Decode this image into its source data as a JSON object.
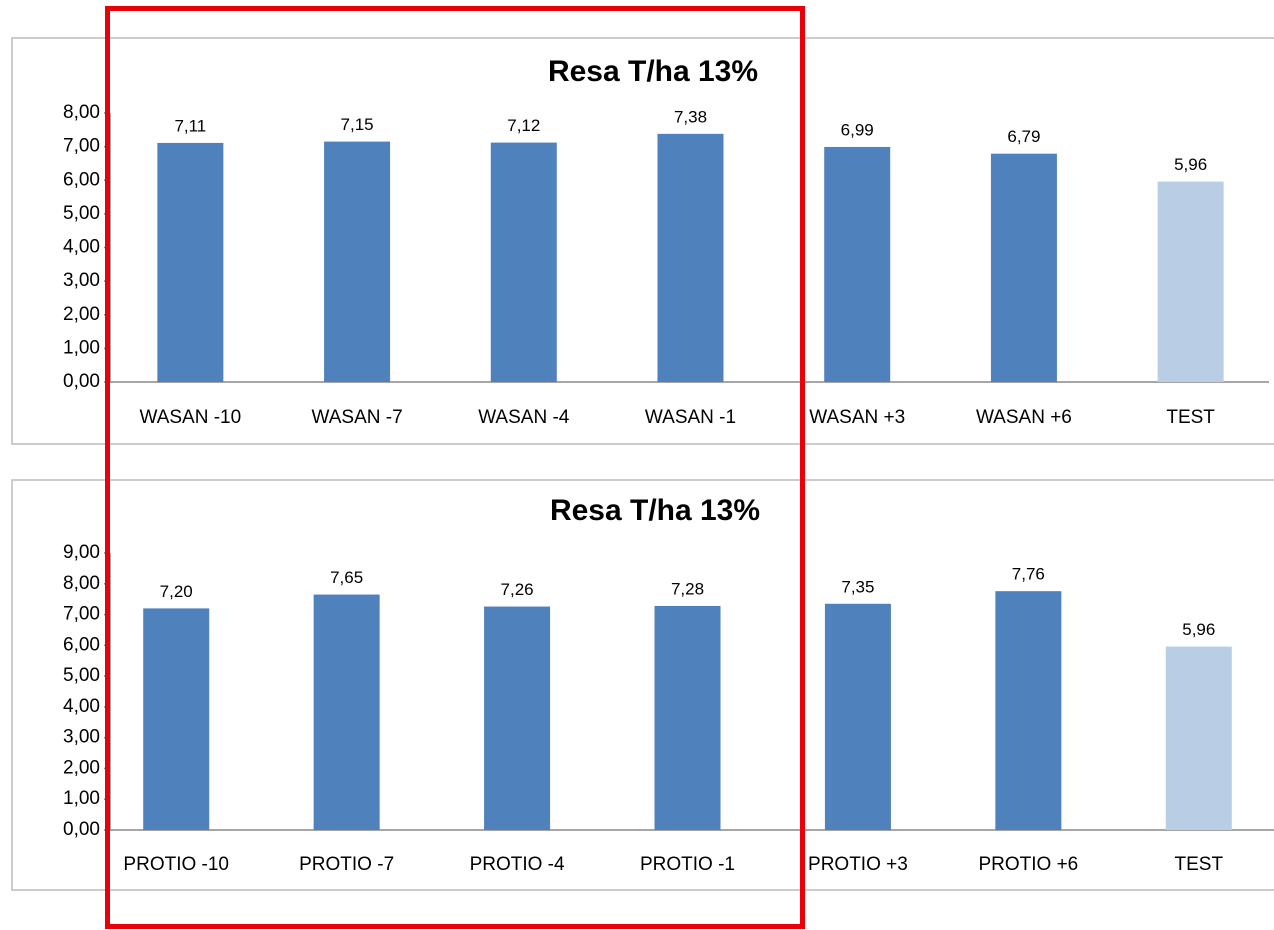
{
  "chart_data": [
    {
      "type": "bar",
      "title": "Resa T/ha 13%",
      "categories": [
        "WASAN -10",
        "WASAN -7",
        "WASAN -4",
        "WASAN -1",
        "WASAN +3",
        "WASAN +6",
        "TEST"
      ],
      "values": [
        7.11,
        7.15,
        7.12,
        7.38,
        6.99,
        6.79,
        5.96
      ],
      "value_labels": [
        "7,11",
        "7,15",
        "7,12",
        "7,38",
        "6,99",
        "6,79",
        "5,96"
      ],
      "colors": [
        "#4f81bd",
        "#4f81bd",
        "#4f81bd",
        "#4f81bd",
        "#4f81bd",
        "#4f81bd",
        "#b9cde5"
      ],
      "ylim": [
        0,
        8
      ],
      "yticks": [
        {
          "value": 0,
          "label": "0,00"
        },
        {
          "value": 1,
          "label": "1,00"
        },
        {
          "value": 2,
          "label": "2,00"
        },
        {
          "value": 3,
          "label": "3,00"
        },
        {
          "value": 4,
          "label": "4,00"
        },
        {
          "value": 5,
          "label": "5,00"
        },
        {
          "value": 6,
          "label": "6,00"
        },
        {
          "value": 7,
          "label": "7,00"
        },
        {
          "value": 8,
          "label": "8,00"
        }
      ],
      "grid": false
    },
    {
      "type": "bar",
      "title": "Resa T/ha 13%",
      "categories": [
        "PROTIO -10",
        "PROTIO -7",
        "PROTIO -4",
        "PROTIO -1",
        "PROTIO +3",
        "PROTIO +6",
        "TEST"
      ],
      "values": [
        7.2,
        7.65,
        7.26,
        7.28,
        7.35,
        7.76,
        5.96
      ],
      "value_labels": [
        "7,20",
        "7,65",
        "7,26",
        "7,28",
        "7,35",
        "7,76",
        "5,96"
      ],
      "colors": [
        "#4f81bd",
        "#4f81bd",
        "#4f81bd",
        "#4f81bd",
        "#4f81bd",
        "#4f81bd",
        "#b9cde5"
      ],
      "ylim": [
        0,
        9
      ],
      "yticks": [
        {
          "value": 0,
          "label": "0,00"
        },
        {
          "value": 1,
          "label": "1,00"
        },
        {
          "value": 2,
          "label": "2,00"
        },
        {
          "value": 3,
          "label": "3,00"
        },
        {
          "value": 4,
          "label": "4,00"
        },
        {
          "value": 5,
          "label": "5,00"
        },
        {
          "value": 6,
          "label": "6,00"
        },
        {
          "value": 7,
          "label": "7,00"
        },
        {
          "value": 8,
          "label": "8,00"
        },
        {
          "value": 9,
          "label": "9,00"
        }
      ],
      "grid": false
    }
  ]
}
